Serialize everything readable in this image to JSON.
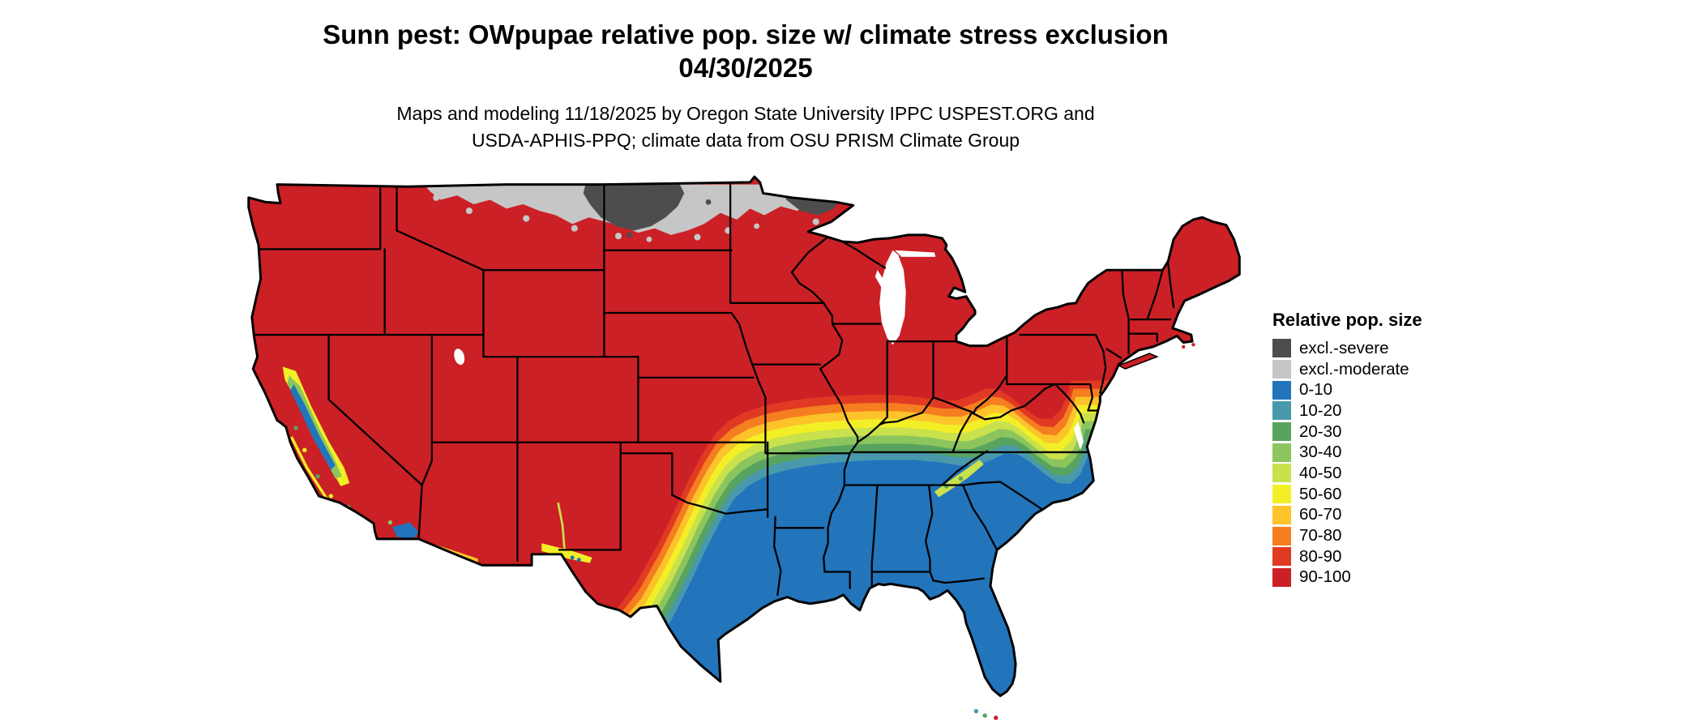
{
  "title": {
    "line1": "Sunn pest: OWpupae relative pop. size w/ climate stress exclusion",
    "line2": "04/30/2025"
  },
  "subtitle": {
    "line1": "Maps and modeling 11/18/2025 by Oregon State University IPPC USPEST.ORG and",
    "line2": "USDA-APHIS-PPQ; climate data from OSU PRISM Climate Group"
  },
  "legend": {
    "title": "Relative pop. size",
    "items": [
      {
        "label": "excl.-severe",
        "color": "#4d4d4d"
      },
      {
        "label": "excl.-moderate",
        "color": "#c6c6c6"
      },
      {
        "label": "0-10",
        "color": "#2274bb"
      },
      {
        "label": "10-20",
        "color": "#4999ac"
      },
      {
        "label": "20-30",
        "color": "#58a35f"
      },
      {
        "label": "30-40",
        "color": "#8cc55e"
      },
      {
        "label": "40-50",
        "color": "#c9e14c"
      },
      {
        "label": "50-60",
        "color": "#f3ef27"
      },
      {
        "label": "60-70",
        "color": "#fcc32a"
      },
      {
        "label": "70-80",
        "color": "#f57e20"
      },
      {
        "label": "80-90",
        "color": "#e13a22"
      },
      {
        "label": "90-100",
        "color": "#cb2026"
      }
    ]
  }
}
